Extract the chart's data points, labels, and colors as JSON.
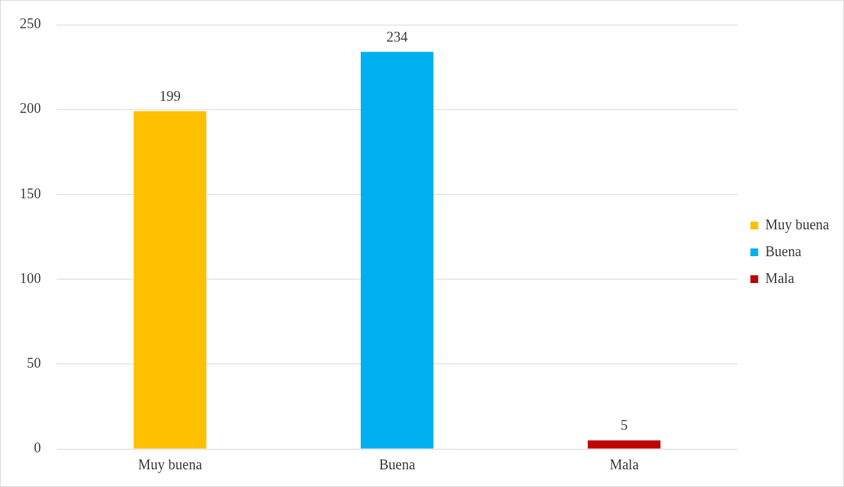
{
  "chart_data": {
    "type": "bar",
    "categories": [
      "Muy buena",
      "Buena",
      "Mala"
    ],
    "series": [
      {
        "name": "Muy buena",
        "color": "#ffc000",
        "values": [
          199,
          null,
          null
        ]
      },
      {
        "name": "Buena",
        "color": "#00b0f0",
        "values": [
          null,
          234,
          null
        ]
      },
      {
        "name": "Mala",
        "color": "#c00000",
        "values": [
          null,
          null,
          5
        ]
      }
    ],
    "ylim": [
      0,
      250
    ],
    "yticks": [
      0,
      50,
      100,
      150,
      200,
      250
    ],
    "grid": "y",
    "legend": "right",
    "data_labels": true
  }
}
